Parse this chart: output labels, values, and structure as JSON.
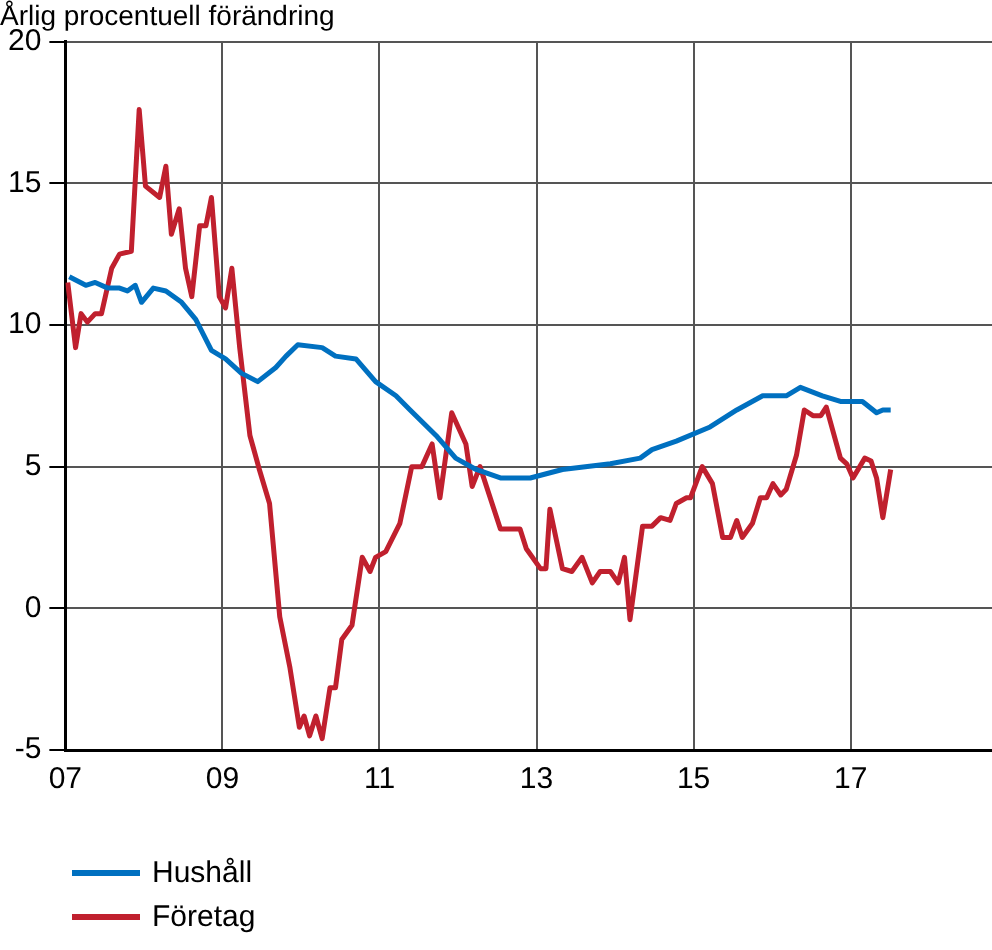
{
  "chart_data": {
    "type": "line",
    "title": "Årlig procentuell förändring",
    "xlim": [
      2007,
      2018.8
    ],
    "xticks": [
      {
        "value": 2007,
        "label": "07"
      },
      {
        "value": 2009,
        "label": "09"
      },
      {
        "value": 2011,
        "label": "11"
      },
      {
        "value": 2013,
        "label": "13"
      },
      {
        "value": 2015,
        "label": "15"
      },
      {
        "value": 2017,
        "label": "17"
      }
    ],
    "ylim": [
      -5,
      20
    ],
    "yticks": [
      -5,
      0,
      5,
      10,
      15,
      20
    ],
    "grid": true,
    "legend": "bottom left",
    "marker": "none",
    "line_style": "solid",
    "series": [
      {
        "name": "Hushåll",
        "color": "#0070c0",
        "x": [
          2007.05,
          2007.26,
          2007.38,
          2007.54,
          2007.69,
          2007.79,
          2007.89,
          2007.97,
          2008.12,
          2008.28,
          2008.48,
          2008.66,
          2008.86,
          2009.04,
          2009.24,
          2009.45,
          2009.68,
          2009.81,
          2009.96,
          2010.27,
          2010.44,
          2010.7,
          2010.95,
          2011.21,
          2011.39,
          2011.72,
          2011.97,
          2012.23,
          2012.54,
          2012.92,
          2013.33,
          2013.94,
          2014.32,
          2014.47,
          2014.78,
          2015.21,
          2015.55,
          2015.88,
          2016.18,
          2016.36,
          2016.64,
          2016.87,
          2017.15,
          2017.33,
          2017.41,
          2017.51
        ],
        "values": [
          11.7,
          11.4,
          11.5,
          11.3,
          11.3,
          11.2,
          11.4,
          10.8,
          11.3,
          11.2,
          10.8,
          10.2,
          9.1,
          8.8,
          8.3,
          8.0,
          8.5,
          8.9,
          9.3,
          9.2,
          8.9,
          8.8,
          8.0,
          7.5,
          7.0,
          6.1,
          5.3,
          4.9,
          4.6,
          4.6,
          4.9,
          5.1,
          5.3,
          5.6,
          5.9,
          6.4,
          7.0,
          7.5,
          7.5,
          7.8,
          7.5,
          7.3,
          7.3,
          6.9,
          7.0,
          7.0
        ]
      },
      {
        "name": "Företag",
        "color": "#c0202e",
        "x": [
          2007.03,
          2007.13,
          2007.2,
          2007.28,
          2007.38,
          2007.46,
          2007.59,
          2007.69,
          2007.84,
          2007.94,
          2008.02,
          2008.2,
          2008.28,
          2008.35,
          2008.45,
          2008.53,
          2008.61,
          2008.71,
          2008.79,
          2008.86,
          2008.96,
          2009.04,
          2009.12,
          2009.22,
          2009.35,
          2009.47,
          2009.6,
          2009.73,
          2009.86,
          2009.98,
          2010.04,
          2010.11,
          2010.19,
          2010.27,
          2010.37,
          2010.44,
          2010.52,
          2010.65,
          2010.78,
          2010.88,
          2010.95,
          2011.08,
          2011.26,
          2011.41,
          2011.54,
          2011.67,
          2011.77,
          2011.92,
          2012.1,
          2012.18,
          2012.28,
          2012.54,
          2012.79,
          2012.87,
          2013.05,
          2013.12,
          2013.17,
          2013.33,
          2013.45,
          2013.58,
          2013.71,
          2013.81,
          2013.94,
          2014.04,
          2014.12,
          2014.19,
          2014.35,
          2014.47,
          2014.58,
          2014.7,
          2014.78,
          2014.91,
          2014.96,
          2015.11,
          2015.24,
          2015.37,
          2015.47,
          2015.55,
          2015.62,
          2015.75,
          2015.85,
          2015.93,
          2016.01,
          2016.11,
          2016.18,
          2016.31,
          2016.41,
          2016.52,
          2016.62,
          2016.69,
          2016.87,
          2016.95,
          2017.03,
          2017.18,
          2017.26,
          2017.33,
          2017.41,
          2017.51
        ],
        "values": [
          11.5,
          9.2,
          10.4,
          10.1,
          10.4,
          10.4,
          12.0,
          12.5,
          12.6,
          17.6,
          14.9,
          14.5,
          15.6,
          13.2,
          14.1,
          12.0,
          11.0,
          13.5,
          13.5,
          14.5,
          11.0,
          10.6,
          12.0,
          9.2,
          6.1,
          4.9,
          3.7,
          -0.3,
          -2.1,
          -4.2,
          -3.8,
          -4.5,
          -3.8,
          -4.6,
          -2.8,
          -2.8,
          -1.1,
          -0.6,
          1.8,
          1.3,
          1.8,
          2.0,
          3.0,
          5.0,
          5.0,
          5.8,
          3.9,
          6.9,
          5.8,
          4.3,
          5.0,
          2.8,
          2.8,
          2.1,
          1.4,
          1.4,
          3.5,
          1.4,
          1.3,
          1.8,
          0.9,
          1.3,
          1.3,
          0.9,
          1.8,
          -0.4,
          2.9,
          2.9,
          3.2,
          3.1,
          3.7,
          3.9,
          3.9,
          5.0,
          4.4,
          2.5,
          2.5,
          3.1,
          2.5,
          3.0,
          3.9,
          3.9,
          4.4,
          4.0,
          4.2,
          5.4,
          7.0,
          6.8,
          6.8,
          7.1,
          5.3,
          5.1,
          4.6,
          5.3,
          5.2,
          4.6,
          3.2,
          4.9
        ]
      }
    ]
  }
}
